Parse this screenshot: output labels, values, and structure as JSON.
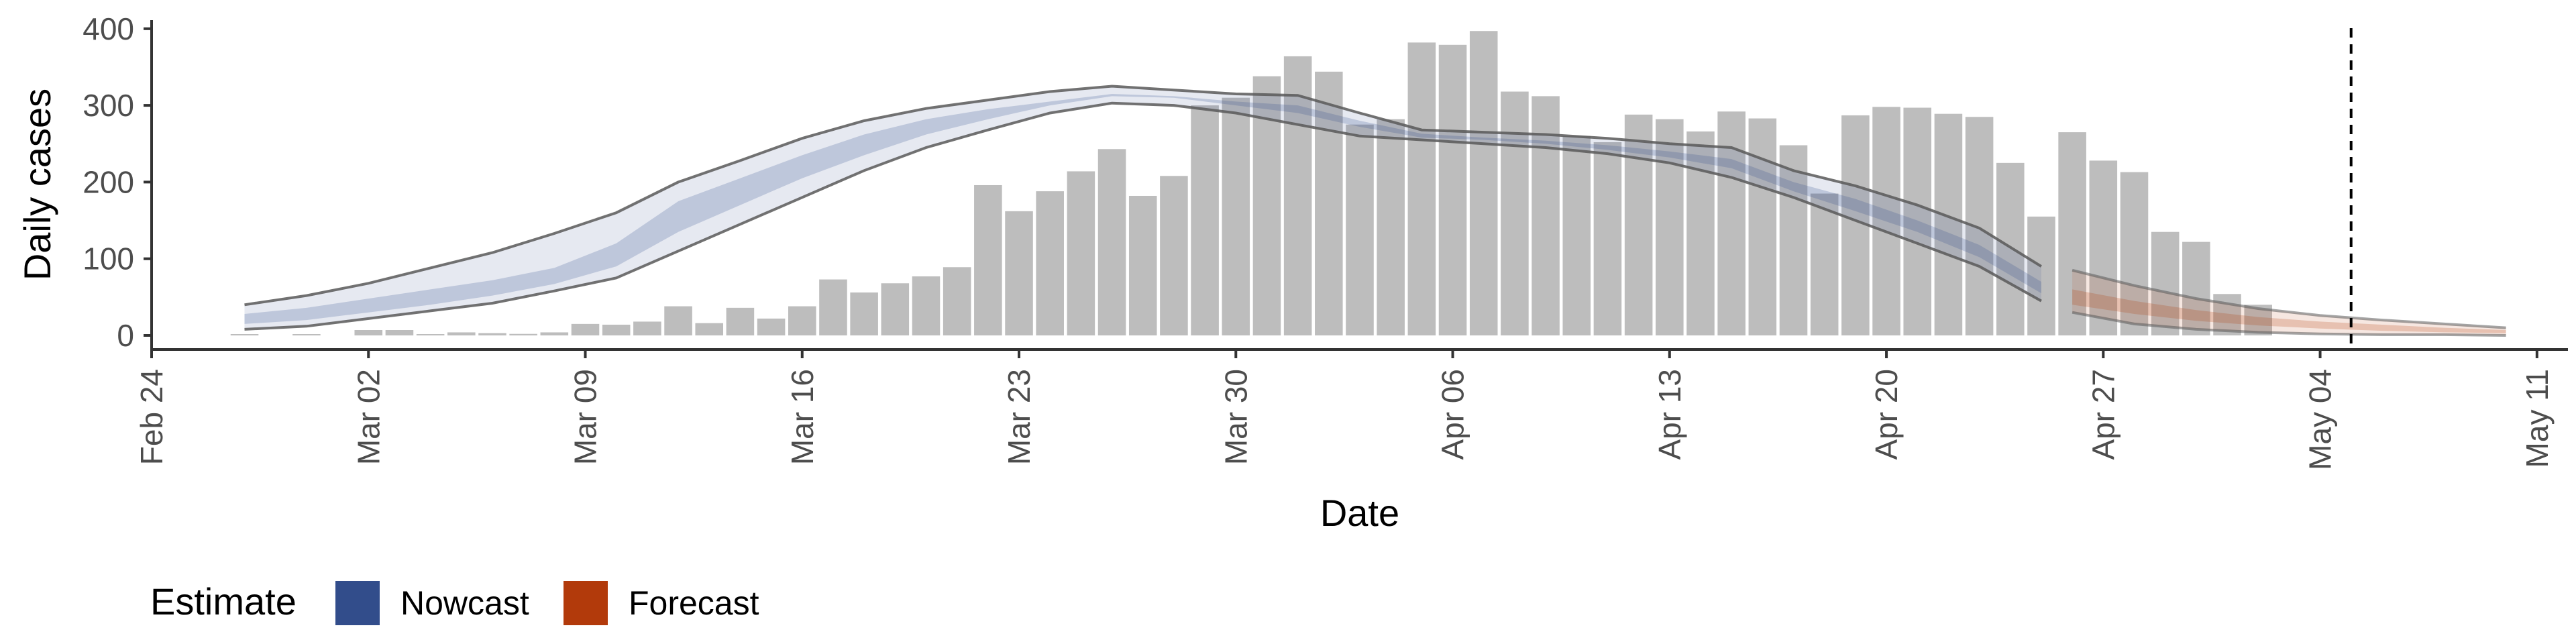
{
  "chart_data": {
    "type": "bar",
    "xlabel": "Date",
    "ylabel": "Daily cases",
    "ylim": [
      0,
      420
    ],
    "y_ticks": [
      "0",
      "100",
      "200",
      "300",
      "400"
    ],
    "x_ticks": [
      "Feb 24",
      "Mar 02",
      "Mar 09",
      "Mar 16",
      "Mar 23",
      "Mar 30",
      "Apr 06",
      "Apr 13",
      "Apr 20",
      "Apr 27",
      "May 04",
      "May 11"
    ],
    "x_tick_dates": [
      "2020-02-24",
      "2020-03-02",
      "2020-03-09",
      "2020-03-16",
      "2020-03-23",
      "2020-03-30",
      "2020-04-06",
      "2020-04-13",
      "2020-04-20",
      "2020-04-27",
      "2020-05-04",
      "2020-05-11"
    ],
    "xlim": [
      "2020-02-24",
      "2020-05-12"
    ],
    "bars": {
      "dates": [
        "2020-02-27",
        "2020-02-28",
        "2020-02-29",
        "2020-03-01",
        "2020-03-02",
        "2020-03-03",
        "2020-03-04",
        "2020-03-05",
        "2020-03-06",
        "2020-03-07",
        "2020-03-08",
        "2020-03-09",
        "2020-03-10",
        "2020-03-11",
        "2020-03-12",
        "2020-03-13",
        "2020-03-14",
        "2020-03-15",
        "2020-03-16",
        "2020-03-17",
        "2020-03-18",
        "2020-03-19",
        "2020-03-20",
        "2020-03-21",
        "2020-03-22",
        "2020-03-23",
        "2020-03-24",
        "2020-03-25",
        "2020-03-26",
        "2020-03-27",
        "2020-03-28",
        "2020-03-29",
        "2020-03-30",
        "2020-03-31",
        "2020-04-01",
        "2020-04-02",
        "2020-04-03",
        "2020-04-04",
        "2020-04-05",
        "2020-04-06",
        "2020-04-07",
        "2020-04-08",
        "2020-04-09",
        "2020-04-10",
        "2020-04-11",
        "2020-04-12",
        "2020-04-13",
        "2020-04-14",
        "2020-04-15",
        "2020-04-16",
        "2020-04-17",
        "2020-04-18",
        "2020-04-19",
        "2020-04-20",
        "2020-04-21",
        "2020-04-22",
        "2020-04-23",
        "2020-04-24",
        "2020-04-25",
        "2020-04-26",
        "2020-04-27",
        "2020-04-28",
        "2020-04-29",
        "2020-04-30",
        "2020-05-01",
        "2020-05-02",
        "2020-05-03"
      ],
      "values": [
        1,
        0,
        1,
        0,
        7,
        7,
        1,
        4,
        3,
        2,
        4,
        15,
        14,
        18,
        38,
        16,
        36,
        22,
        38,
        73,
        56,
        68,
        77,
        89,
        196,
        162,
        188,
        214,
        243,
        182,
        208,
        300,
        310,
        338,
        364,
        344,
        275,
        282,
        382,
        379,
        397,
        318,
        312,
        260,
        252,
        288,
        282,
        266,
        292,
        283,
        248,
        185,
        287,
        298,
        297,
        289,
        285,
        225,
        155,
        265,
        228,
        213,
        135,
        122,
        54,
        40,
        0
      ]
    },
    "series": [
      {
        "name": "Nowcast",
        "dates": [
          "2020-02-27",
          "2020-02-29",
          "2020-03-02",
          "2020-03-04",
          "2020-03-06",
          "2020-03-08",
          "2020-03-10",
          "2020-03-12",
          "2020-03-14",
          "2020-03-16",
          "2020-03-18",
          "2020-03-20",
          "2020-03-22",
          "2020-03-24",
          "2020-03-26",
          "2020-03-28",
          "2020-03-30",
          "2020-04-01",
          "2020-04-03",
          "2020-04-05",
          "2020-04-07",
          "2020-04-09",
          "2020-04-11",
          "2020-04-13",
          "2020-04-15",
          "2020-04-17",
          "2020-04-19",
          "2020-04-21",
          "2020-04-23",
          "2020-04-25"
        ],
        "upper90": [
          40,
          52,
          68,
          88,
          108,
          133,
          160,
          200,
          228,
          257,
          280,
          296,
          307,
          318,
          325,
          320,
          315,
          313,
          290,
          268,
          265,
          262,
          257,
          250,
          245,
          215,
          195,
          170,
          140,
          90
        ],
        "lower90": [
          8,
          12,
          22,
          32,
          42,
          58,
          75,
          110,
          145,
          180,
          215,
          245,
          268,
          290,
          303,
          300,
          290,
          275,
          260,
          255,
          250,
          245,
          237,
          225,
          206,
          180,
          150,
          120,
          90,
          45
        ],
        "upper50": [
          28,
          36,
          48,
          60,
          72,
          88,
          120,
          175,
          205,
          235,
          262,
          282,
          295,
          305,
          315,
          312,
          305,
          300,
          280,
          263,
          258,
          254,
          248,
          240,
          230,
          200,
          178,
          150,
          118,
          70
        ],
        "lower50": [
          15,
          20,
          30,
          40,
          52,
          67,
          90,
          135,
          170,
          205,
          235,
          262,
          282,
          300,
          312,
          310,
          300,
          290,
          272,
          258,
          255,
          250,
          242,
          232,
          218,
          188,
          162,
          135,
          102,
          55
        ],
        "color": "#324d8b"
      },
      {
        "name": "Forecast",
        "dates": [
          "2020-04-26",
          "2020-04-28",
          "2020-04-30",
          "2020-05-02",
          "2020-05-04",
          "2020-05-06",
          "2020-05-08",
          "2020-05-10"
        ],
        "upper90": [
          85,
          65,
          48,
          35,
          26,
          20,
          15,
          10
        ],
        "lower90": [
          30,
          15,
          8,
          4,
          2,
          1,
          1,
          0
        ],
        "upper50": [
          60,
          45,
          33,
          24,
          18,
          14,
          10,
          7
        ],
        "lower50": [
          40,
          28,
          19,
          13,
          9,
          6,
          4,
          3
        ],
        "color": "#b23a0b"
      }
    ],
    "vline_date": "2020-05-05",
    "legend": {
      "title": "Estimate",
      "position": "bottom-left",
      "items": [
        {
          "label": "Nowcast",
          "color": "#324d8b"
        },
        {
          "label": "Forecast",
          "color": "#b23a0b"
        }
      ]
    },
    "colors": {
      "bar": "#bdbdbd",
      "band_line": "#595959",
      "axis": "#333333",
      "tick_text": "#4d4d4d"
    }
  }
}
